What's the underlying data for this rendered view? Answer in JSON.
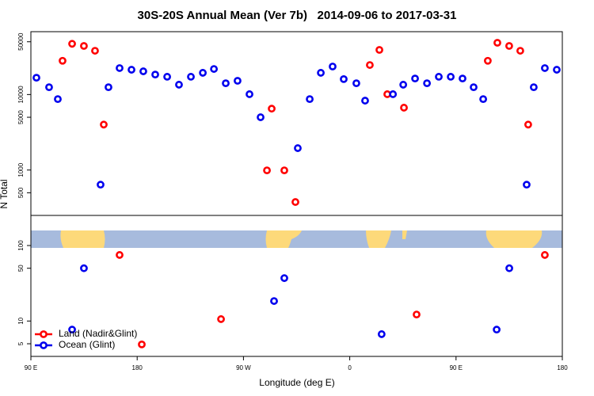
{
  "chart_data": {
    "type": "scatter",
    "title": "30S-20S Annual Mean (Ver 7b)   2014-09-06 to 2017-03-31",
    "x_label": "Longitude (deg E)",
    "y_label": "N Total",
    "log_y": true,
    "legend": "lower left",
    "xlim": [
      90,
      540
    ],
    "xticks": [
      {
        "value": 90,
        "label": "90 E"
      },
      {
        "value": 180,
        "label": "180"
      },
      {
        "value": 270,
        "label": "90 W"
      },
      {
        "value": 360,
        "label": "0"
      },
      {
        "value": 450,
        "label": "90 E"
      },
      {
        "value": 540,
        "label": "180"
      }
    ],
    "ylim": [
      3.4,
      68000
    ],
    "yticks": [
      5,
      10,
      50,
      100,
      500,
      1000,
      5000,
      10000,
      50000
    ],
    "series": [
      {
        "name": "Land (Nadir&Glint)",
        "color": "#ff0000",
        "x": [
          116.8,
          124.9,
          134.9,
          144.3,
          151.7,
          165.1,
          183.9,
          251,
          289.9,
          293.9,
          304.6,
          314,
          377,
          385.1,
          391.8,
          405.9,
          416.6,
          476.9,
          485,
          495,
          504.4,
          511.1,
          525.2
        ],
        "values": [
          28000,
          47000,
          44000,
          38000,
          4000,
          75,
          4.9,
          10.6,
          990,
          6500,
          990,
          377,
          24600,
          39000,
          10100,
          6700,
          12.2,
          28000,
          48500,
          44000,
          38000,
          4000,
          75
        ]
      },
      {
        "name": "Ocean (Glint)",
        "color": "#0000ee",
        "x": [
          94.7,
          105.4,
          112.8,
          124.9,
          134.9,
          149,
          155.7,
          165.1,
          175.2,
          185.2,
          195.3,
          205.4,
          215.4,
          225.5,
          235.6,
          245,
          255,
          265,
          275.1,
          284.5,
          295.9,
          304.6,
          316,
          326.1,
          335.5,
          345.5,
          354.9,
          365.6,
          373,
          387,
          396.6,
          405.3,
          415.3,
          425.4,
          435.4,
          445.5,
          455.5,
          464.9,
          473,
          484.4,
          495.1,
          509.8,
          515.8,
          525.2,
          535.3
        ],
        "values": [
          16700,
          12500,
          8700,
          7.7,
          50,
          640,
          12500,
          22400,
          21300,
          20300,
          18400,
          17200,
          13500,
          17200,
          19400,
          21800,
          14100,
          15200,
          10100,
          5000,
          18.4,
          37,
          1950,
          8700,
          19400,
          23500,
          16000,
          14100,
          8300,
          6.7,
          10100,
          13500,
          16300,
          14100,
          17200,
          17200,
          16300,
          12500,
          8700,
          7.7,
          50,
          640,
          12500,
          22400,
          21300
        ]
      }
    ]
  }
}
